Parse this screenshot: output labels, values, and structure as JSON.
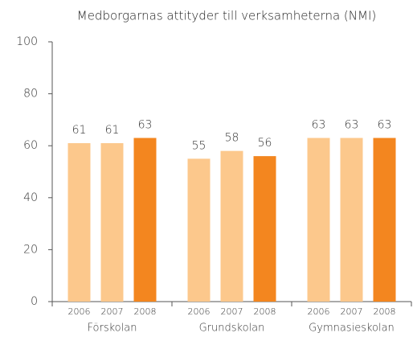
{
  "chart_data": {
    "type": "bar",
    "title": "Medborgarnas attityder till verksamheterna (NMI)",
    "categories": [
      "Förskolan",
      "Grundskolan",
      "Gymnasieskolan"
    ],
    "series": [
      {
        "name": "2006",
        "color": "#fcc88c",
        "values": [
          61,
          55,
          63
        ]
      },
      {
        "name": "2007",
        "color": "#fcc88c",
        "values": [
          61,
          58,
          63
        ]
      },
      {
        "name": "2008",
        "color": "#f3861f",
        "values": [
          63,
          56,
          63
        ]
      }
    ],
    "ylim": [
      0,
      100
    ],
    "yticks": [
      0,
      20,
      40,
      60,
      80,
      100
    ],
    "grid": false
  }
}
